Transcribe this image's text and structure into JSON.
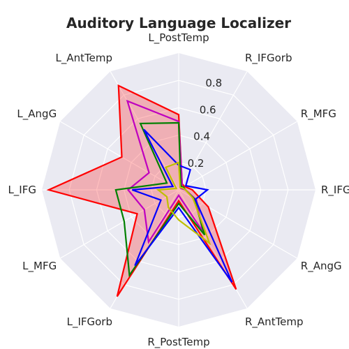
{
  "chart_data": {
    "type": "radar",
    "title": "Auditory Language Localizer",
    "categories": [
      "R_IFG",
      "R_MFG",
      "R_IFGorb",
      "L_PostTemp",
      "L_AntTemp",
      "L_AngG",
      "L_IFG",
      "L_MFG",
      "L_IFGorb",
      "R_PostTemp",
      "R_AntTemp",
      "R_AngG"
    ],
    "rlim": [
      0,
      1.0
    ],
    "rticks": [
      0.2,
      0.4,
      0.6,
      0.8
    ],
    "rtick_labels": [
      "0.2",
      "0.4",
      "0.6",
      "0.8"
    ],
    "grid": true,
    "series": [
      {
        "color": "#ff0000",
        "fill": true,
        "values": [
          0.1,
          0.05,
          0.05,
          0.55,
          0.88,
          0.48,
          0.95,
          0.35,
          0.9,
          0.08,
          0.84,
          0.25
        ]
      },
      {
        "color": "#bf00bf",
        "fill": false,
        "values": [
          0.05,
          0.02,
          0.05,
          0.5,
          0.75,
          0.25,
          0.37,
          0.29,
          0.44,
          0.04,
          0.35,
          0.15
        ]
      },
      {
        "color": "#008000",
        "fill": false,
        "values": [
          0.05,
          0.04,
          0.03,
          0.49,
          0.56,
          0.1,
          0.46,
          0.46,
          0.72,
          0.1,
          0.38,
          0.13
        ]
      },
      {
        "color": "#0000ff",
        "fill": false,
        "values": [
          0.21,
          0.06,
          0.17,
          0.18,
          0.51,
          0.05,
          0.34,
          0.15,
          0.64,
          0.13,
          0.78,
          0.14
        ]
      },
      {
        "color": "#bfbf00",
        "fill": false,
        "values": [
          0.05,
          0.03,
          0.02,
          0.2,
          0.19,
          0.02,
          0.15,
          0.1,
          0.15,
          0.22,
          0.45,
          0.12
        ]
      }
    ]
  }
}
